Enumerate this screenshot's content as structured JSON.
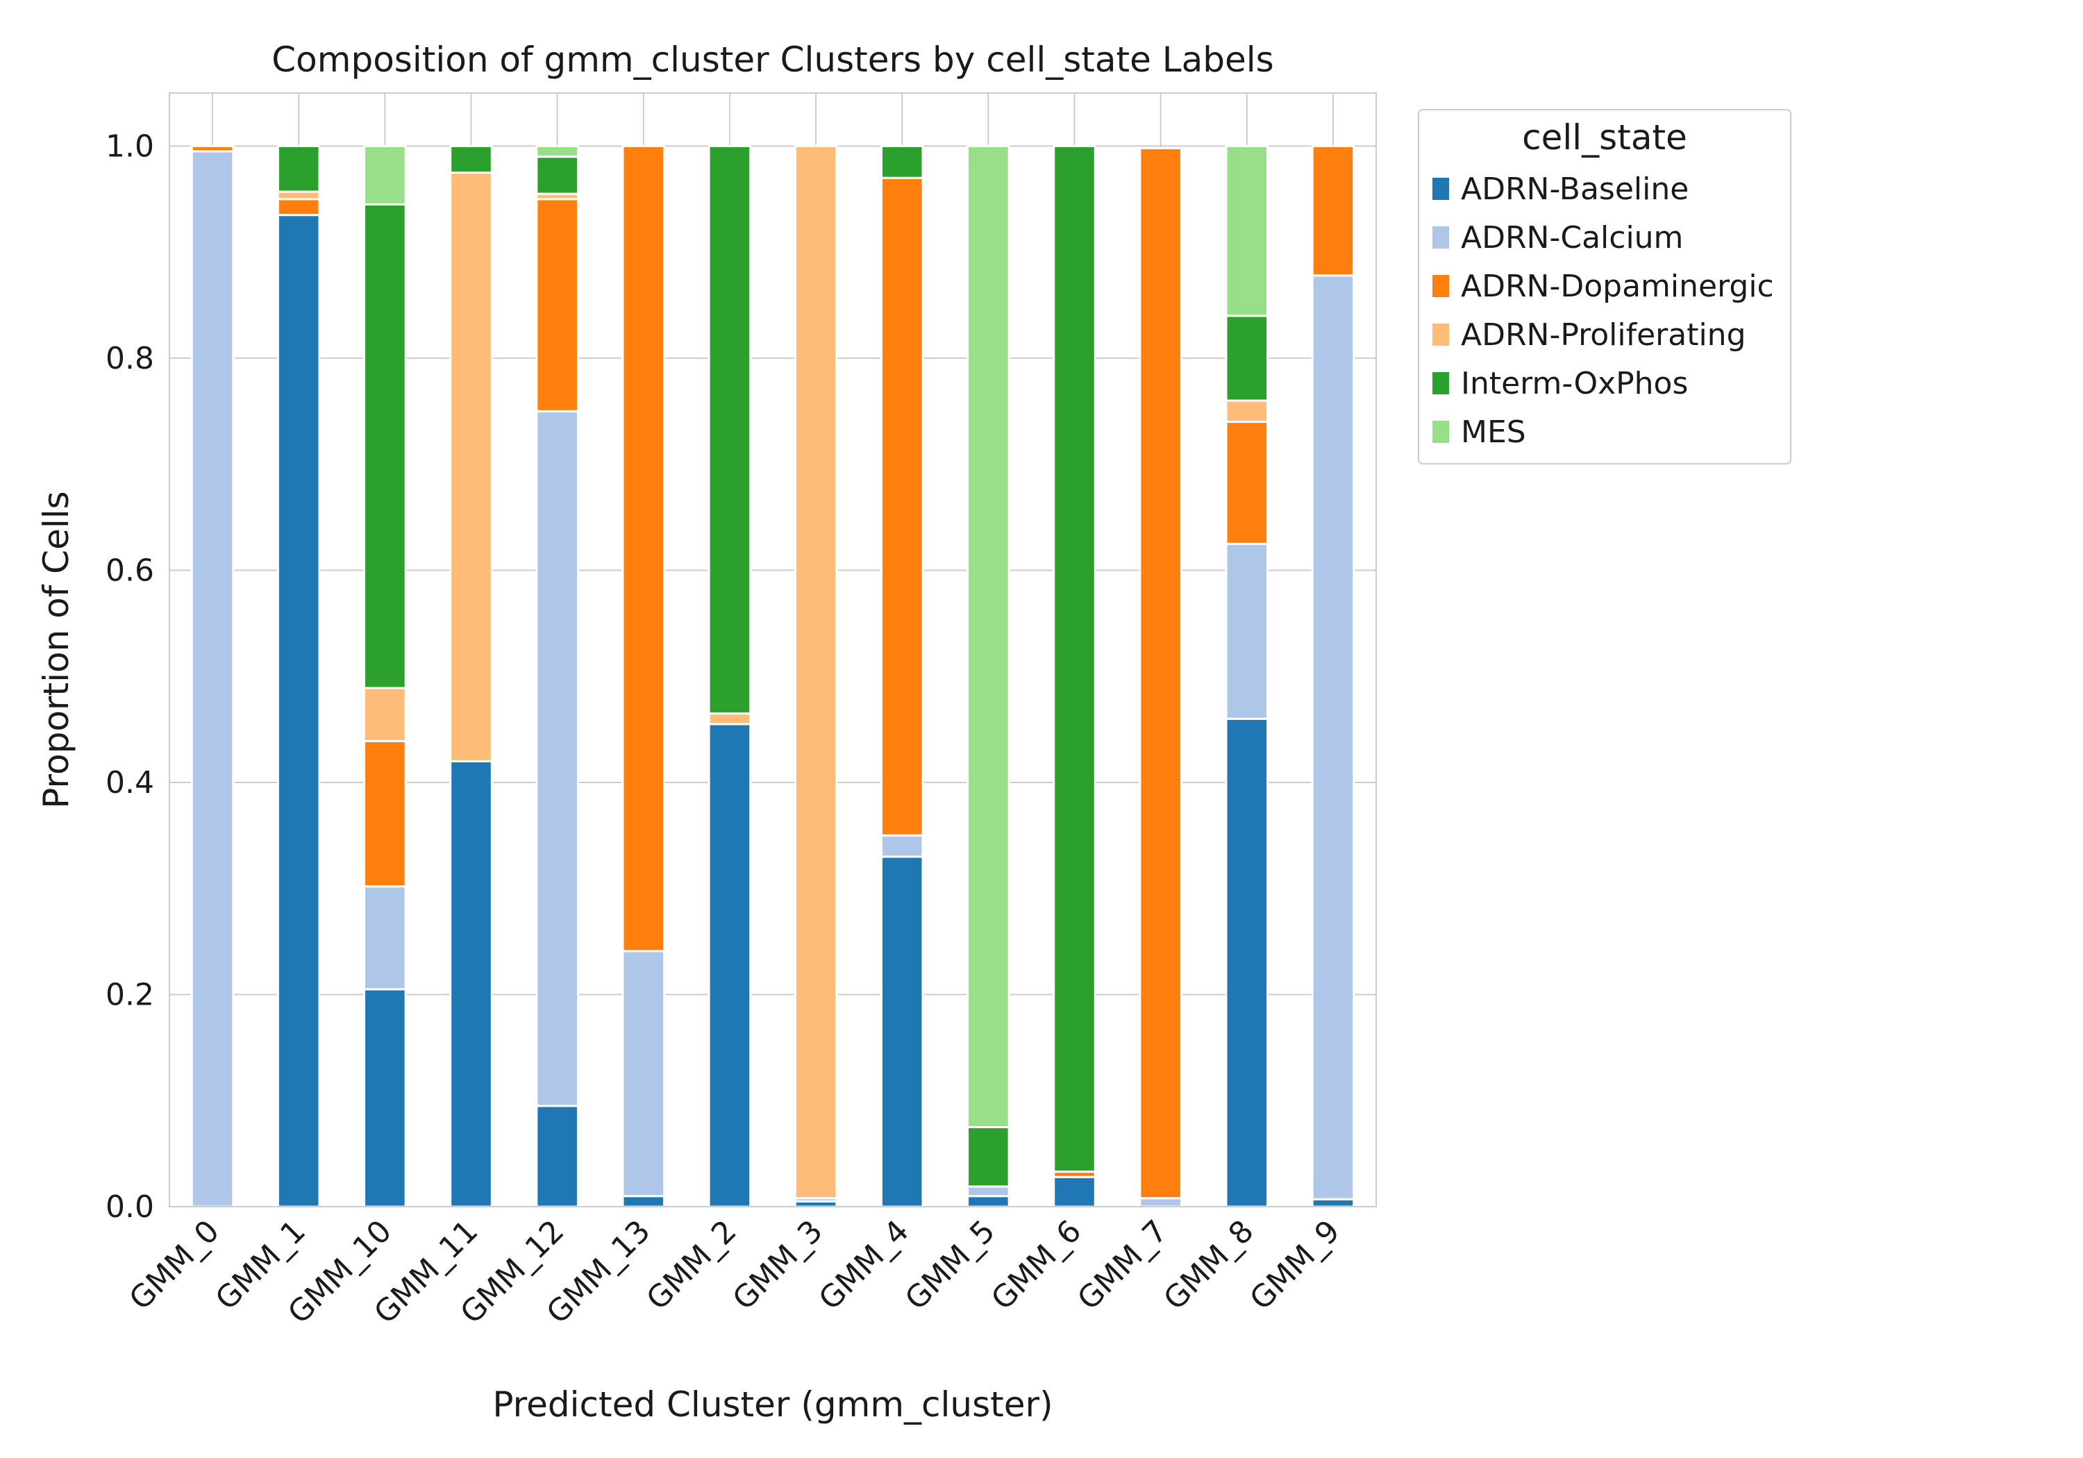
{
  "chart_data": {
    "type": "bar",
    "stacked": true,
    "title": "Composition of gmm_cluster Clusters by cell_state Labels",
    "xlabel": "Predicted Cluster (gmm_cluster)",
    "ylabel": "Proportion of Cells",
    "ylim": [
      0,
      1.05
    ],
    "yticks": [
      "0.0",
      "0.2",
      "0.4",
      "0.6",
      "0.8",
      "1.0"
    ],
    "grid": true,
    "legend": {
      "title": "cell_state",
      "placement": "outside-top-right"
    },
    "categories": [
      "GMM_0",
      "GMM_1",
      "GMM_10",
      "GMM_11",
      "GMM_12",
      "GMM_13",
      "GMM_2",
      "GMM_3",
      "GMM_4",
      "GMM_5",
      "GMM_6",
      "GMM_7",
      "GMM_8",
      "GMM_9"
    ],
    "series": [
      {
        "name": "ADRN-Baseline",
        "color": "#1f77b4",
        "values": [
          0.0,
          0.935,
          0.205,
          0.42,
          0.095,
          0.01,
          0.455,
          0.005,
          0.33,
          0.01,
          0.028,
          0.0,
          0.46,
          0.007
        ]
      },
      {
        "name": "ADRN-Calcium",
        "color": "#aec7e8",
        "values": [
          0.995,
          0.0,
          0.097,
          0.0,
          0.655,
          0.231,
          0.0,
          0.003,
          0.02,
          0.009,
          0.0,
          0.008,
          0.165,
          0.871
        ]
      },
      {
        "name": "ADRN-Dopaminergic",
        "color": "#ff7f0e",
        "values": [
          0.005,
          0.015,
          0.137,
          0.0,
          0.2,
          0.759,
          0.0,
          0.0,
          0.62,
          0.0,
          0.005,
          0.99,
          0.115,
          0.122
        ]
      },
      {
        "name": "ADRN-Proliferating",
        "color": "#ffbb78",
        "values": [
          0.0,
          0.007,
          0.05,
          0.555,
          0.005,
          0.0,
          0.01,
          0.992,
          0.0,
          0.0,
          0.0,
          0.0,
          0.02,
          0.0
        ]
      },
      {
        "name": "Interm-OxPhos",
        "color": "#2ca02c",
        "values": [
          0.0,
          0.043,
          0.456,
          0.025,
          0.035,
          0.0,
          0.535,
          0.0,
          0.03,
          0.056,
          0.967,
          0.0,
          0.08,
          0.0
        ]
      },
      {
        "name": "MES",
        "color": "#98df8a",
        "values": [
          0.0,
          0.0,
          0.055,
          0.0,
          0.01,
          0.0,
          0.0,
          0.0,
          0.0,
          0.925,
          0.0,
          0.0,
          0.16,
          0.0
        ]
      }
    ]
  }
}
